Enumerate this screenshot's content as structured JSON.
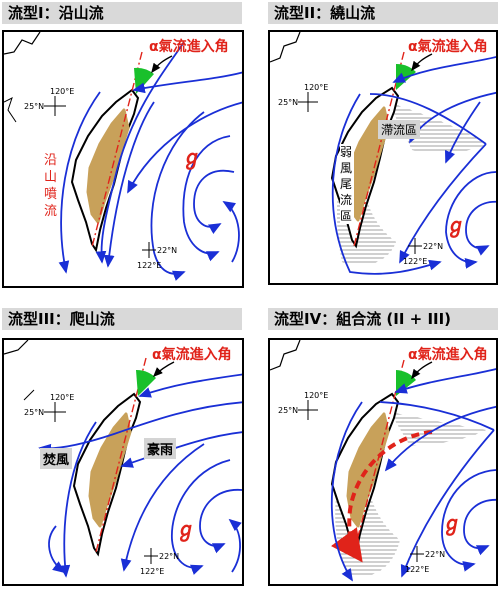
{
  "panels": [
    {
      "title": "流型I：沿山流",
      "alpha_label": "α氣流進入角",
      "side_label": "沿山噴流",
      "lon_top": "120°E",
      "lat_top": "25°N",
      "lat_bottom": "22°N",
      "lon_bottom": "122°E"
    },
    {
      "title": "流型II：繞山流",
      "alpha_label": "α氣流進入角",
      "label_stagnation": "滯流區",
      "label_weak": "弱風尾流區",
      "lon_top": "120°E",
      "lat_top": "25°N",
      "lat_bottom": "22°N",
      "lon_bottom": "122°E"
    },
    {
      "title": "流型III：爬山流",
      "alpha_label": "α氣流進入角",
      "label_foehn": "焚風",
      "label_rain": "豪雨",
      "lon_top": "120°E",
      "lat_top": "25°N",
      "lat_bottom": "22°N",
      "lon_bottom": "122°E"
    },
    {
      "title": "流型IV：組合流 (II + III)",
      "alpha_label": "α氣流進入角",
      "lon_top": "120°E",
      "lat_top": "25°N",
      "lat_bottom": "22°N",
      "lon_bottom": "122°E"
    }
  ],
  "colors": {
    "flow": "#1a2fd6",
    "axis": "#e0231a",
    "terrain": "#c8a15a",
    "angle": "#19c02b",
    "title_bg": "#d9d9d9"
  },
  "icons": [
    "typhoon-icon",
    "arrow-icon"
  ]
}
